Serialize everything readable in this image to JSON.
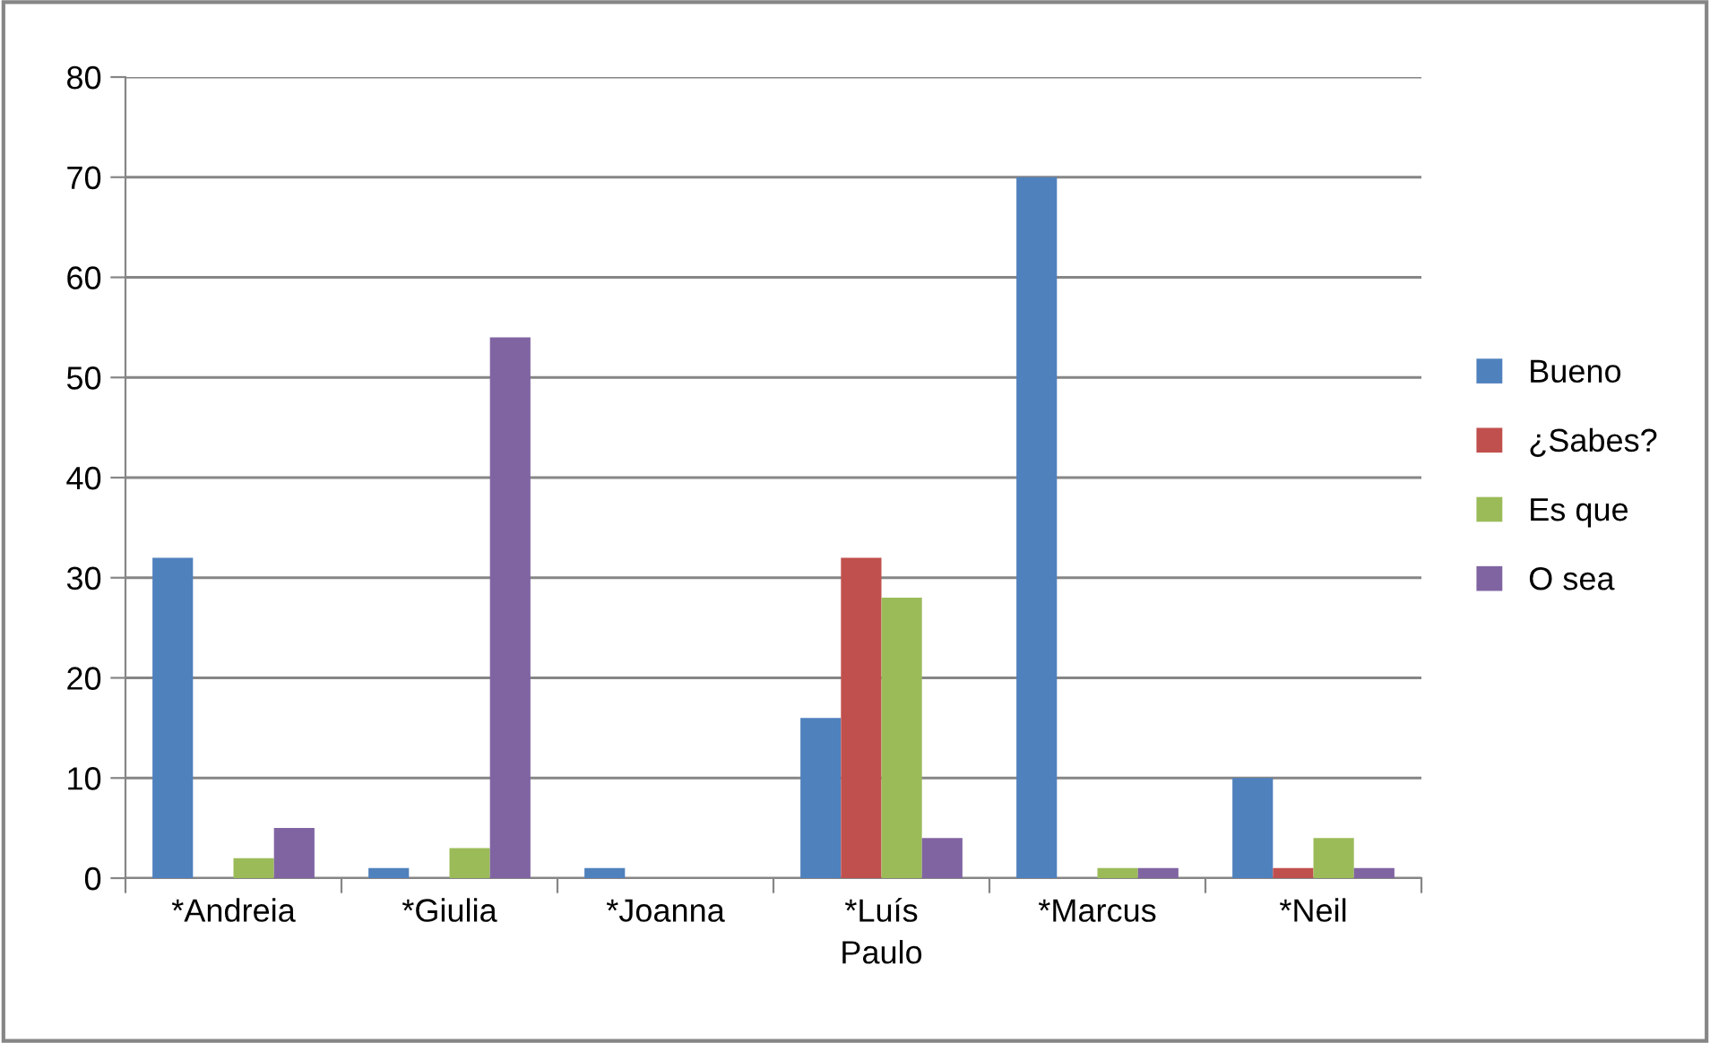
{
  "chart_data": {
    "type": "bar",
    "categories": [
      "*Andreia",
      "*Giulia",
      "*Joanna",
      "*Luís Paulo",
      "*Marcus",
      "*Neil"
    ],
    "series": [
      {
        "name": "Bueno",
        "color": "#4f81bd",
        "values": [
          32,
          1,
          1,
          16,
          70,
          10
        ]
      },
      {
        "name": "¿Sabes?",
        "color": "#c0504d",
        "values": [
          0,
          0,
          0,
          32,
          0,
          1
        ]
      },
      {
        "name": "Es que",
        "color": "#9bbb59",
        "values": [
          2,
          3,
          0,
          28,
          1,
          4
        ]
      },
      {
        "name": "O sea",
        "color": "#8064a2",
        "values": [
          5,
          54,
          0,
          4,
          1,
          1
        ]
      }
    ],
    "ylim": [
      0,
      80
    ],
    "yticks": [
      0,
      10,
      20,
      30,
      40,
      50,
      60,
      70,
      80
    ],
    "grid": "y",
    "legend": "right"
  }
}
